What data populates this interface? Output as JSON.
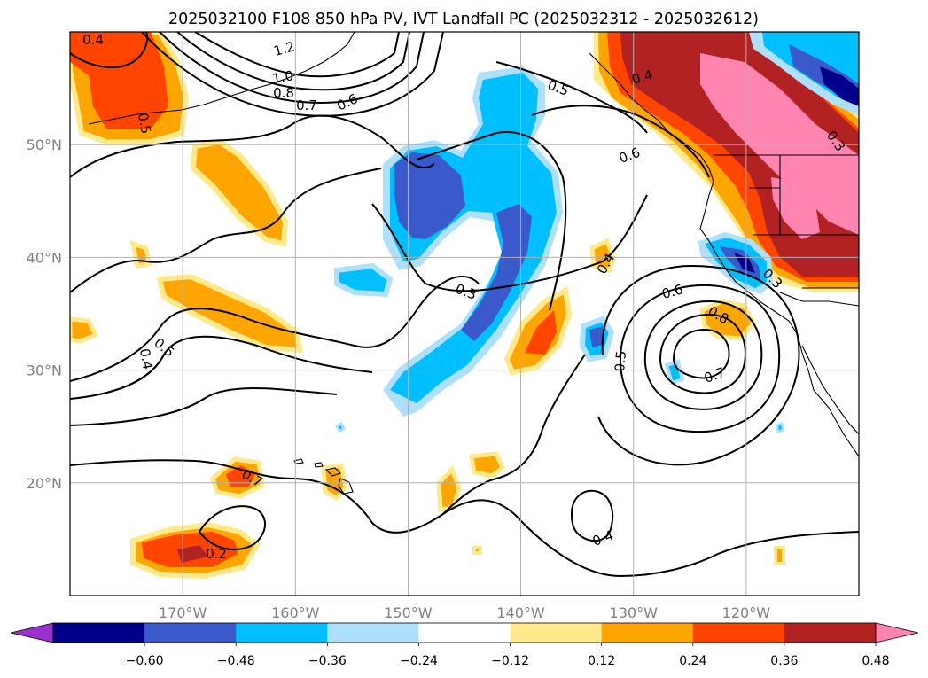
{
  "title": "2025032100 F108 850 hPa PV, IVT Landfall PC (2025032312 - 2025032612)",
  "map": {
    "lon_range": [
      -180,
      -110
    ],
    "lat_range": [
      10,
      60
    ],
    "lon_ticks": [
      {
        "value": -170,
        "label": "170°W"
      },
      {
        "value": -160,
        "label": "160°W"
      },
      {
        "value": -150,
        "label": "150°W"
      },
      {
        "value": -140,
        "label": "140°W"
      },
      {
        "value": -130,
        "label": "130°W"
      },
      {
        "value": -120,
        "label": "120°W"
      }
    ],
    "lat_ticks": [
      {
        "value": 20,
        "label": "20°N"
      },
      {
        "value": 30,
        "label": "30°N"
      },
      {
        "value": 40,
        "label": "40°N"
      },
      {
        "value": 50,
        "label": "50°N"
      }
    ],
    "grid": true
  },
  "colorbar": {
    "levels": [
      -0.6,
      -0.48,
      -0.36,
      -0.24,
      -0.12,
      0.12,
      0.24,
      0.36,
      0.48,
      0.6
    ],
    "labels": [
      "−0.60",
      "−0.48",
      "−0.36",
      "−0.24",
      "−0.12",
      "0.12",
      "0.24",
      "0.36",
      "0.48",
      "0.60"
    ],
    "colors": [
      "#9932cc",
      "#00008b",
      "#3a5acb",
      "#00bfff",
      "#afe0fb",
      "#ffffff",
      "#ffe98a",
      "#ffa500",
      "#ff4500",
      "#b22222",
      "#ff85b0"
    ],
    "extend": "both"
  },
  "pv_contour_labels": [
    "0.4",
    "1.2",
    "1.0",
    "0.8",
    "0.7",
    "0.6",
    "0.5",
    "0.5",
    "0.6",
    "0.3",
    "0.4",
    "0.3",
    "0.4",
    "0.5",
    "0.4",
    "0.6",
    "0.3",
    "0.8",
    "0.5",
    "0.7",
    "0.7",
    "0.2",
    "0.4"
  ],
  "colors": {
    "contour": "#000000",
    "grid": "#b0b0b0",
    "tick_label": "#808080"
  }
}
